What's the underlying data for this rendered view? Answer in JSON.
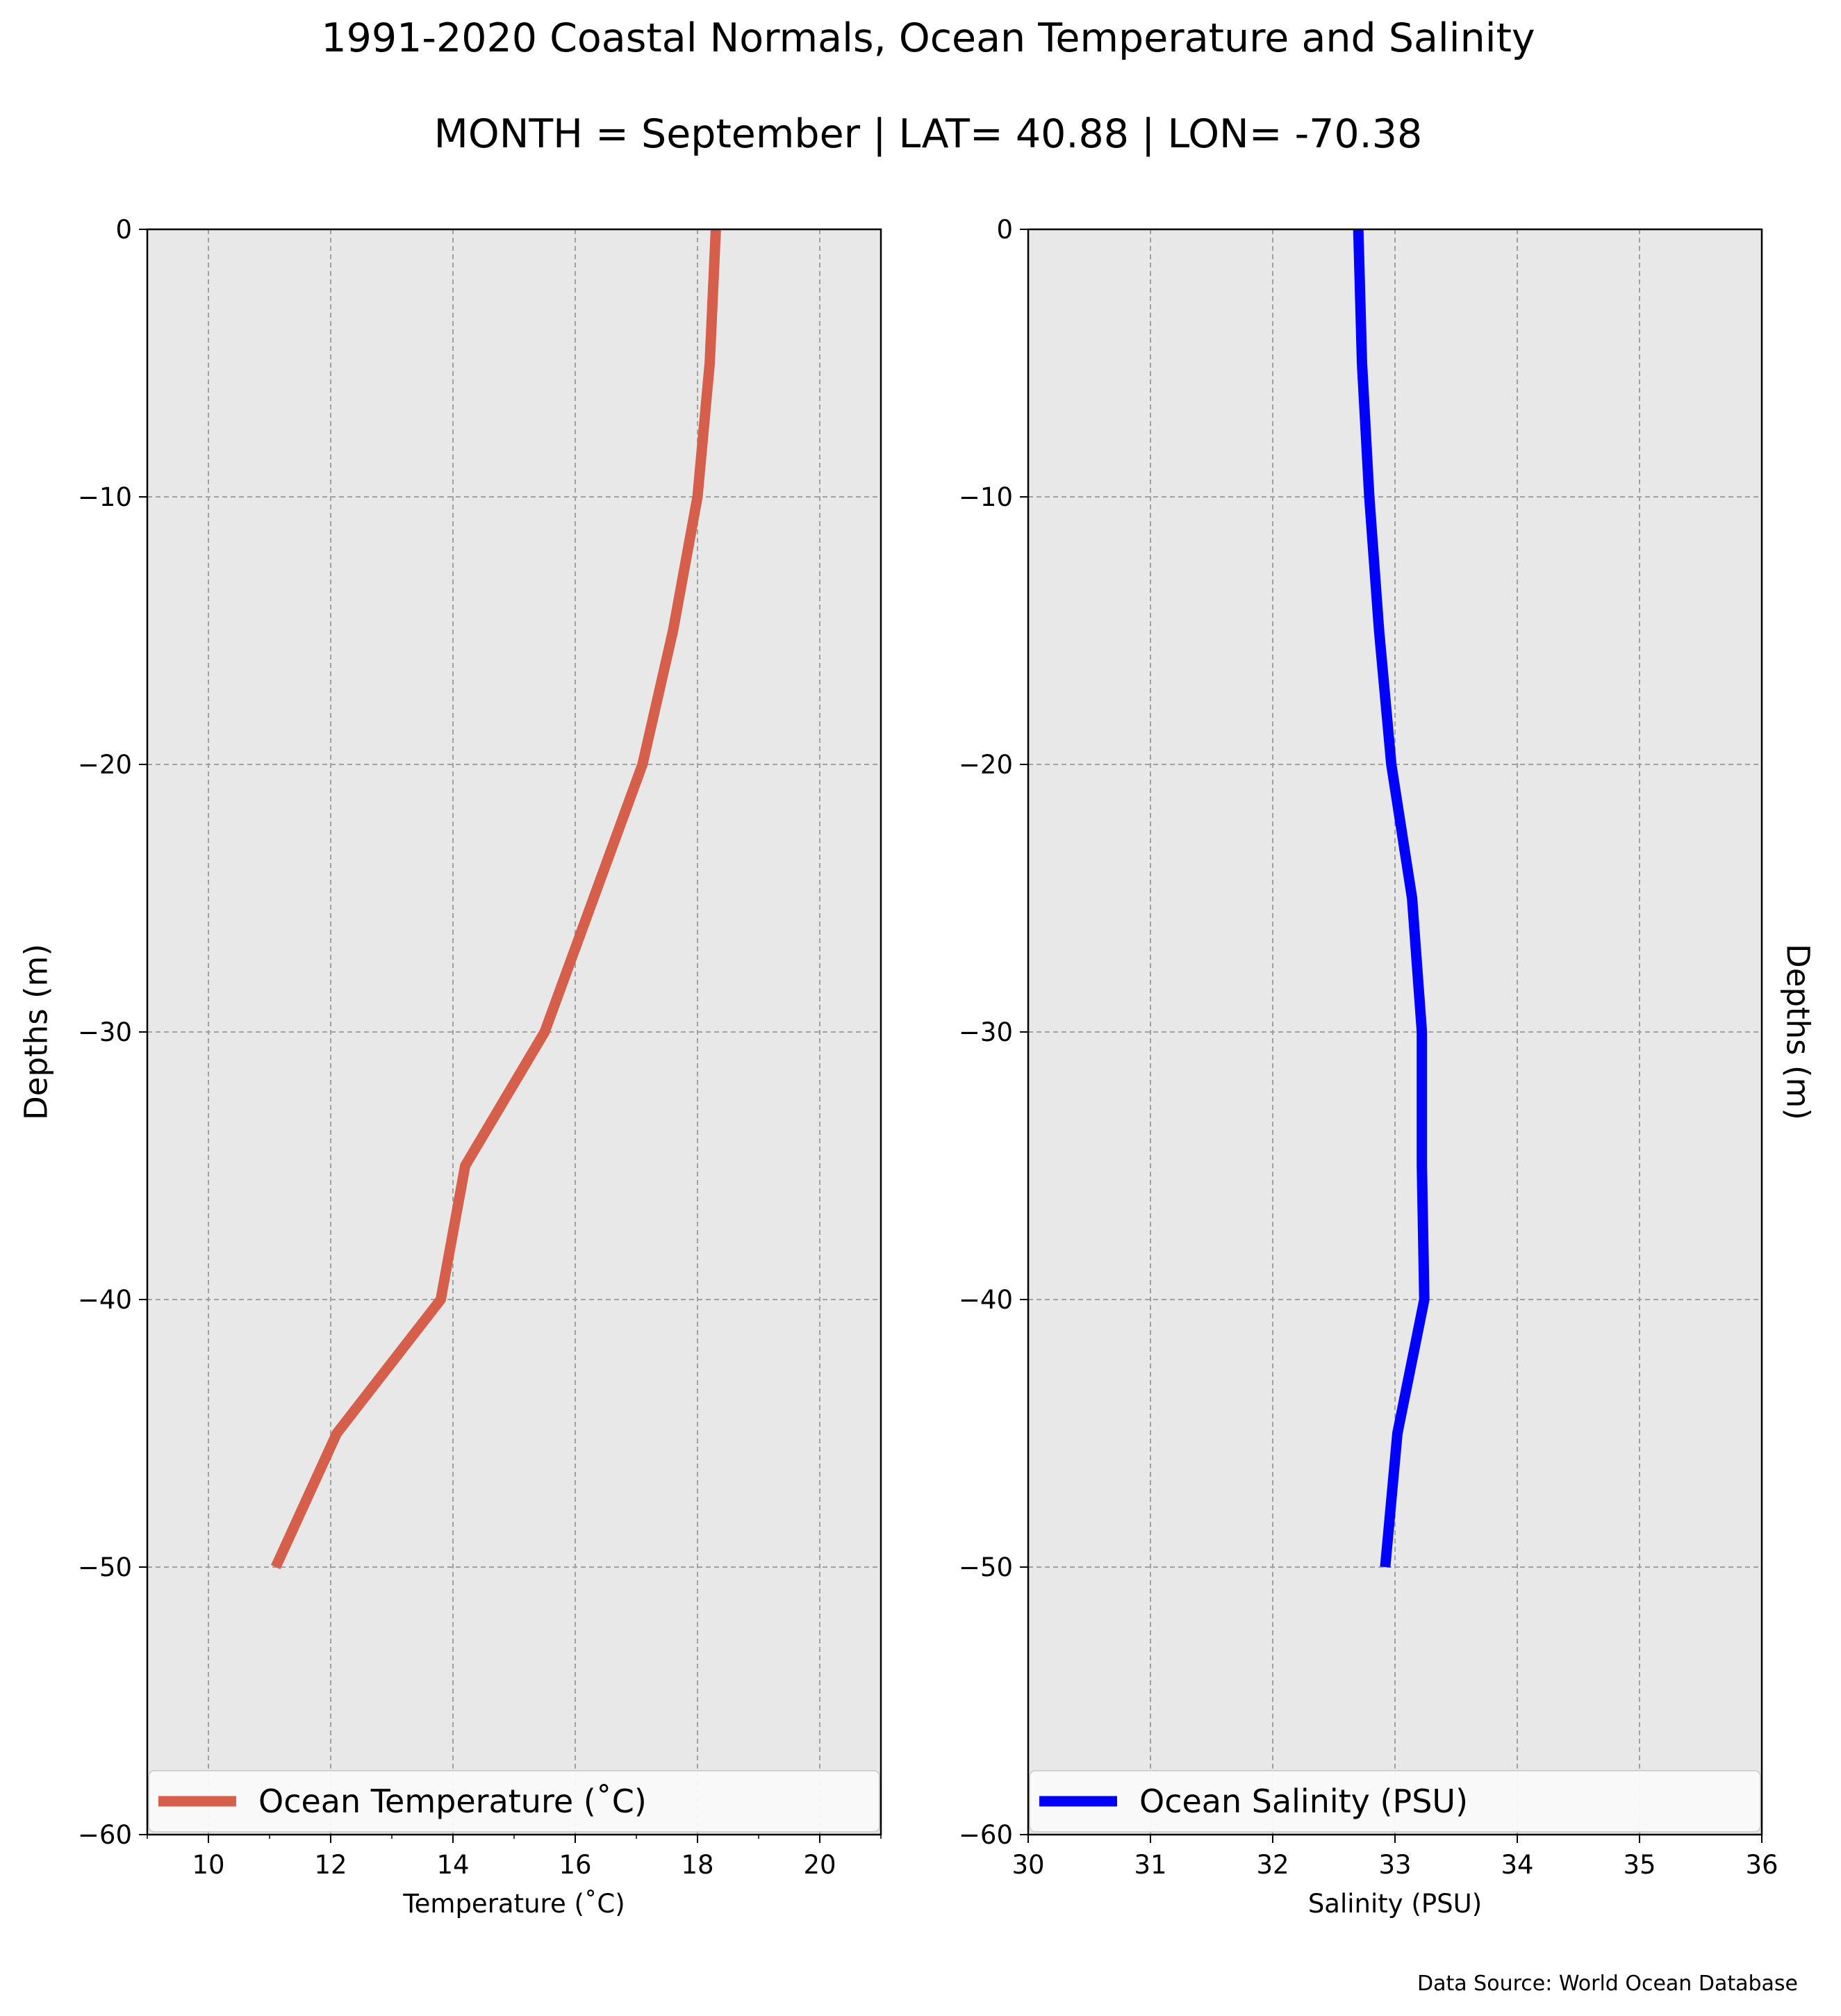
{
  "figure": {
    "title": "1991-2020 Coastal Normals, Ocean Temperature and Salinity",
    "subtitle": "MONTH = September | LAT= 40.88 | LON= -70.38",
    "source_note": "Data Source: World Ocean Database"
  },
  "chart_data": [
    {
      "type": "line",
      "xlabel": "Temperature ($^\\circ$C)",
      "xlabel_text": "Temperature (˚C)",
      "ylabel": "Depths (m)",
      "xlim": [
        9,
        21
      ],
      "ylim": [
        -60,
        0
      ],
      "xticks": [
        10,
        12,
        14,
        16,
        18,
        20
      ],
      "xtick_labels": [
        "10",
        "12",
        "14",
        "16",
        "18",
        "20"
      ],
      "yticks": [
        0,
        -10,
        -20,
        -30,
        -40,
        -50,
        -60
      ],
      "ytick_labels": [
        "0",
        "−10",
        "−20",
        "−30",
        "−40",
        "−50",
        "−60"
      ],
      "grid": true,
      "legend": "bottom",
      "series": [
        {
          "name": "Ocean Temperature (˚C)",
          "color": "#d65f4b",
          "x": [
            18.3,
            18.2,
            18.0,
            17.6,
            17.1,
            16.3,
            15.5,
            14.2,
            13.8,
            12.1,
            11.1
          ],
          "y": [
            0,
            -5,
            -10,
            -15,
            -20,
            -25,
            -30,
            -35,
            -40,
            -45,
            -50
          ]
        }
      ]
    },
    {
      "type": "line",
      "xlabel": "Salinity (PSU)",
      "ylabel": "Depths (m)",
      "ylabel_side": "right",
      "xlim": [
        30,
        36
      ],
      "ylim": [
        -60,
        0
      ],
      "xticks": [
        30,
        31,
        32,
        33,
        34,
        35,
        36
      ],
      "xtick_labels": [
        "30",
        "31",
        "32",
        "33",
        "34",
        "35",
        "36"
      ],
      "yticks": [
        0,
        -10,
        -20,
        -30,
        -40,
        -50,
        -60
      ],
      "ytick_labels": [
        "0",
        "−10",
        "−20",
        "−30",
        "−40",
        "−50",
        "−60"
      ],
      "grid": true,
      "legend": "bottom",
      "series": [
        {
          "name": "Ocean Salinity (PSU)",
          "color": "#0000ff",
          "x": [
            32.7,
            32.73,
            32.79,
            32.87,
            32.97,
            33.14,
            33.22,
            33.22,
            33.24,
            33.02,
            32.92
          ],
          "y": [
            0,
            -5,
            -10,
            -15,
            -20,
            -25,
            -30,
            -35,
            -40,
            -45,
            -50
          ]
        }
      ]
    }
  ]
}
